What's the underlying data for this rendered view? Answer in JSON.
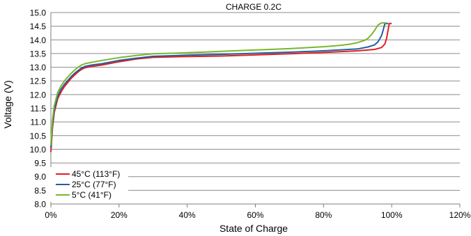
{
  "chart_data": {
    "type": "line",
    "title": "CHARGE 0.2C",
    "xlabel": "State of Charge",
    "ylabel": "Voltage (V)",
    "xlim": [
      0,
      120
    ],
    "ylim": [
      8.0,
      15.0
    ],
    "xticks": [
      0,
      20,
      40,
      60,
      80,
      100,
      120
    ],
    "xtick_labels": [
      "0%",
      "20%",
      "40%",
      "60%",
      "80%",
      "100%",
      "120%"
    ],
    "yticks": [
      8.0,
      8.5,
      9.0,
      9.5,
      10.0,
      10.5,
      11.0,
      11.5,
      12.0,
      12.5,
      13.0,
      13.5,
      14.0,
      14.5,
      15.0
    ],
    "ytick_labels": [
      "8.0",
      "8.5",
      "9.0",
      "9.5",
      "10.0",
      "10.5",
      "11.0",
      "11.5",
      "12.0",
      "12.5",
      "13.0",
      "13.5",
      "14.0",
      "14.5",
      "15.0"
    ],
    "grid": "horizontal",
    "legend_position": "bottom-left",
    "series": [
      {
        "name": "45°C  (113°F)",
        "color": "#e31e24",
        "points": [
          [
            0,
            9.9
          ],
          [
            0.5,
            10.8
          ],
          [
            1,
            11.35
          ],
          [
            2,
            11.85
          ],
          [
            3,
            12.1
          ],
          [
            4,
            12.3
          ],
          [
            5,
            12.45
          ],
          [
            6,
            12.6
          ],
          [
            7,
            12.72
          ],
          [
            8,
            12.83
          ],
          [
            9,
            12.92
          ],
          [
            10,
            12.98
          ],
          [
            12,
            13.03
          ],
          [
            15,
            13.08
          ],
          [
            20,
            13.2
          ],
          [
            25,
            13.3
          ],
          [
            30,
            13.36
          ],
          [
            40,
            13.39
          ],
          [
            50,
            13.41
          ],
          [
            60,
            13.45
          ],
          [
            70,
            13.49
          ],
          [
            80,
            13.54
          ],
          [
            90,
            13.6
          ],
          [
            95,
            13.65
          ],
          [
            97,
            13.72
          ],
          [
            98,
            13.85
          ],
          [
            98.5,
            14.05
          ],
          [
            99,
            14.4
          ],
          [
            99.3,
            14.6
          ],
          [
            100,
            14.6
          ]
        ]
      },
      {
        "name": "25°C  (77°F)",
        "color": "#1f5fa0",
        "points": [
          [
            0,
            10.05
          ],
          [
            0.5,
            10.95
          ],
          [
            1,
            11.45
          ],
          [
            2,
            11.95
          ],
          [
            3,
            12.2
          ],
          [
            4,
            12.38
          ],
          [
            5,
            12.52
          ],
          [
            6,
            12.66
          ],
          [
            7,
            12.78
          ],
          [
            8,
            12.88
          ],
          [
            9,
            12.97
          ],
          [
            10,
            13.03
          ],
          [
            12,
            13.08
          ],
          [
            15,
            13.13
          ],
          [
            20,
            13.25
          ],
          [
            25,
            13.33
          ],
          [
            30,
            13.4
          ],
          [
            40,
            13.44
          ],
          [
            50,
            13.47
          ],
          [
            60,
            13.51
          ],
          [
            70,
            13.55
          ],
          [
            80,
            13.6
          ],
          [
            90,
            13.67
          ],
          [
            93,
            13.74
          ],
          [
            95,
            13.82
          ],
          [
            96,
            13.93
          ],
          [
            97,
            14.15
          ],
          [
            97.5,
            14.35
          ],
          [
            98,
            14.6
          ],
          [
            99,
            14.6
          ]
        ]
      },
      {
        "name": "5°C  (41°F)",
        "color": "#7ab72b",
        "points": [
          [
            0,
            10.15
          ],
          [
            0.5,
            11.1
          ],
          [
            1,
            11.6
          ],
          [
            2,
            12.08
          ],
          [
            3,
            12.32
          ],
          [
            4,
            12.5
          ],
          [
            5,
            12.65
          ],
          [
            6,
            12.78
          ],
          [
            7,
            12.9
          ],
          [
            8,
            13.0
          ],
          [
            9,
            13.08
          ],
          [
            10,
            13.13
          ],
          [
            12,
            13.18
          ],
          [
            15,
            13.25
          ],
          [
            20,
            13.35
          ],
          [
            25,
            13.43
          ],
          [
            30,
            13.49
          ],
          [
            40,
            13.53
          ],
          [
            50,
            13.58
          ],
          [
            60,
            13.63
          ],
          [
            70,
            13.68
          ],
          [
            80,
            13.75
          ],
          [
            85,
            13.8
          ],
          [
            88,
            13.85
          ],
          [
            90,
            13.9
          ],
          [
            92,
            13.98
          ],
          [
            93,
            14.05
          ],
          [
            94,
            14.18
          ],
          [
            95,
            14.35
          ],
          [
            96,
            14.55
          ],
          [
            97,
            14.62
          ],
          [
            98.5,
            14.62
          ]
        ]
      }
    ]
  }
}
